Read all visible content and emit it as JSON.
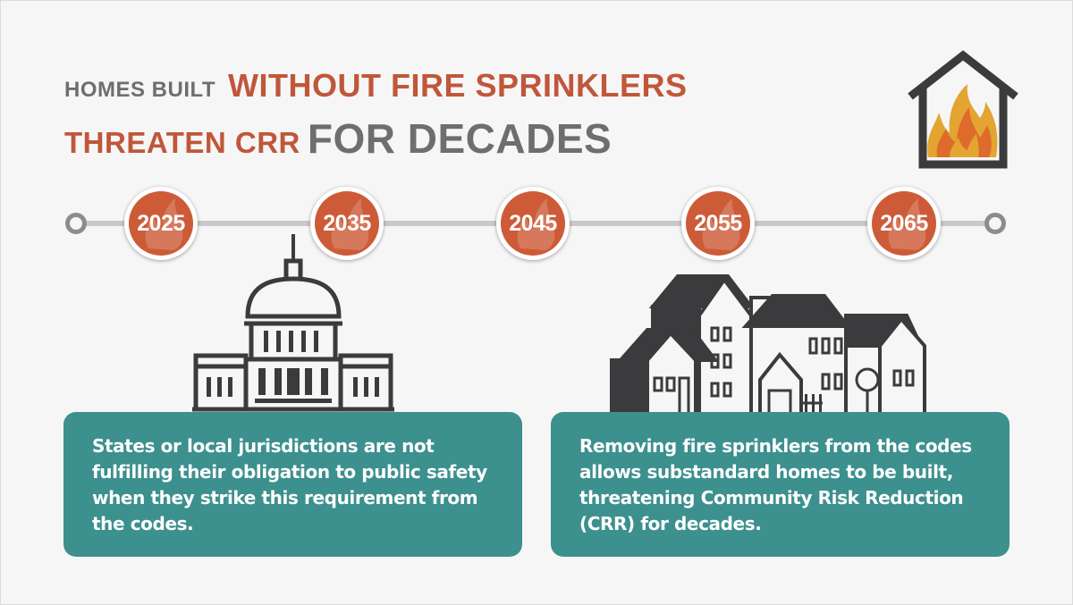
{
  "title": {
    "line1_small": "HOMES BUILT",
    "line1_big": "WITHOUT FIRE SPRINKLERS",
    "line2_accent": "THREATEN CRR",
    "line2_big": "FOR DECADES"
  },
  "timeline": {
    "years": [
      "2025",
      "2035",
      "2045",
      "2055",
      "2065"
    ]
  },
  "cards": {
    "left_text": "States or local jurisdictions are not fulfilling their obligation to public safety when they strike this requirement from the codes.",
    "right_text": "Removing fire sprinklers from the codes allows substandard homes to be built, threatening Community Risk Reduction (CRR) for decades."
  },
  "colors": {
    "accent_orange": "#c0573a",
    "teal": "#3c908e",
    "gray_text": "#6e6e6e",
    "icon_dark": "#3b3b3d"
  },
  "icons": [
    "house-fire-icon",
    "capitol-building-icon",
    "neighborhood-houses-icon",
    "flame-icon"
  ]
}
